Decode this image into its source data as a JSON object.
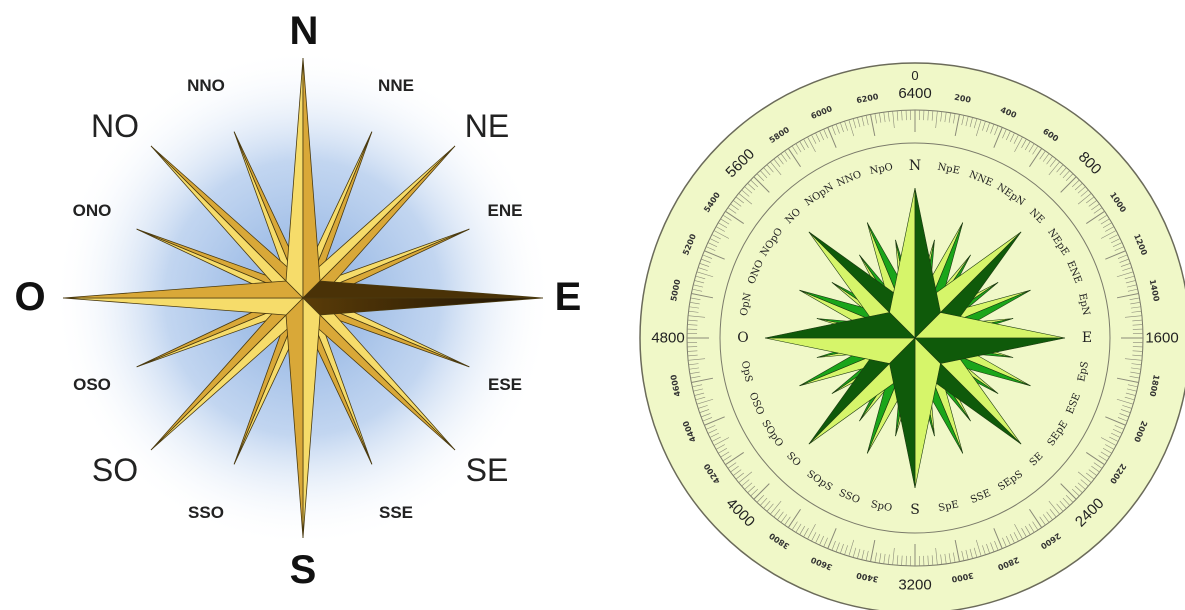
{
  "left_rose": {
    "cardinals": [
      "N",
      "E",
      "S",
      "O"
    ],
    "intercardinals": [
      "NE",
      "SE",
      "SO",
      "NO"
    ],
    "secondary": [
      "NNE",
      "ENE",
      "ESE",
      "SSE",
      "SSO",
      "OSO",
      "ONO",
      "NNO"
    ],
    "colors": {
      "gold_light": "#f6dc6a",
      "gold_mid": "#d9a838",
      "gold_dark": "#6b4a0c",
      "glow": "#7ea6dd"
    }
  },
  "right_rose": {
    "points": [
      "N",
      "NpE",
      "NNE",
      "NEpN",
      "NE",
      "NEpE",
      "ENE",
      "EpN",
      "E",
      "EpS",
      "ESE",
      "SEpE",
      "SE",
      "SEpS",
      "SSE",
      "SpE",
      "S",
      "SpO",
      "SSO",
      "SOpS",
      "SO",
      "SOpO",
      "OSO",
      "OpS",
      "O",
      "OpN",
      "ONO",
      "NOpO",
      "NO",
      "NOpN",
      "NNO",
      "NpO"
    ],
    "mils_major": [
      "0",
      "6400",
      "800",
      "1600",
      "2400",
      "3200",
      "4000",
      "4800",
      "5600"
    ],
    "mils_minor": [
      "200",
      "400",
      "600",
      "1000",
      "1200",
      "1400",
      "1800",
      "2000",
      "2200",
      "2600",
      "2800",
      "3000",
      "3400",
      "3600",
      "3800",
      "4200",
      "4400",
      "4600",
      "5000",
      "5200",
      "5400",
      "5800",
      "6000",
      "6200"
    ],
    "colors": {
      "face": "#f0f8c8",
      "ring": "#6b6b5a",
      "green_dark": "#0f5a0a",
      "green_mid": "#1aa51a",
      "green_light": "#d6f56a"
    }
  }
}
